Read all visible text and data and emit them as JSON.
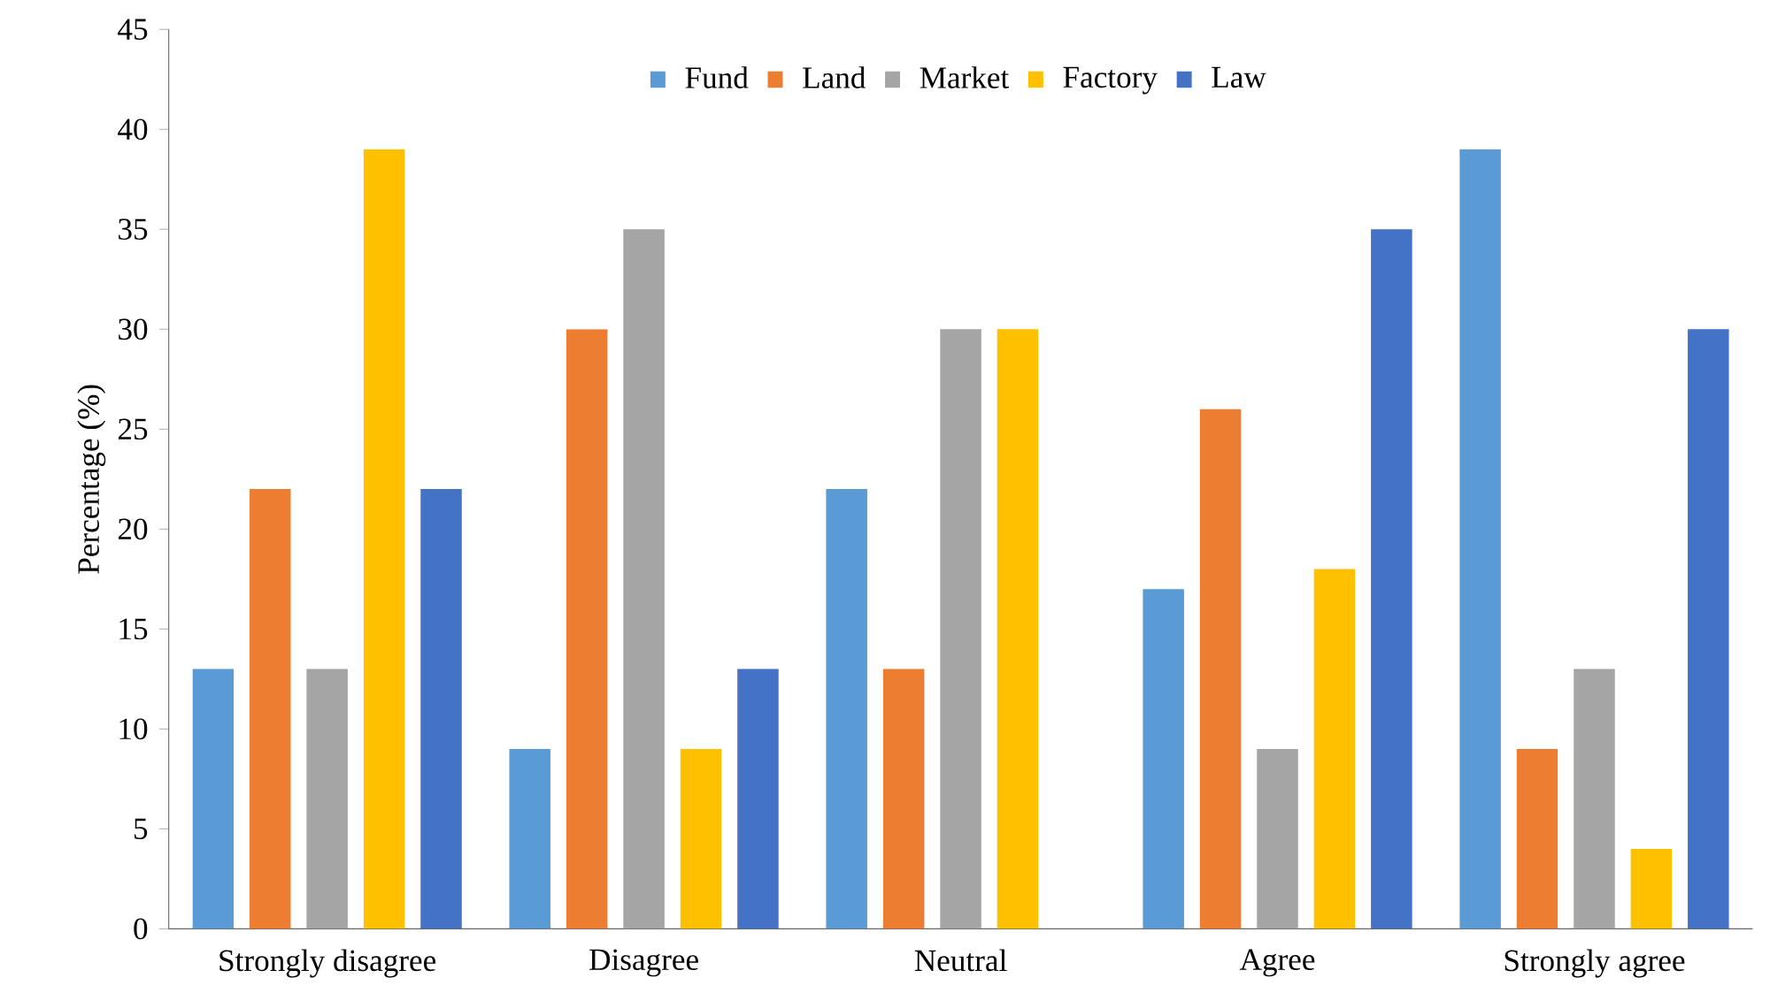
{
  "chart_data": {
    "type": "bar",
    "ylabel": "Percentage (%)",
    "categories": [
      "Strongly disagree",
      "Disagree",
      "Neutral",
      "Agree",
      "Strongly agree"
    ],
    "series": [
      {
        "name": "Fund",
        "color": "#5b9bd5",
        "values": [
          13,
          9,
          22,
          17,
          39
        ]
      },
      {
        "name": "Land",
        "color": "#ed7d31",
        "values": [
          22,
          30,
          13,
          26,
          9
        ]
      },
      {
        "name": "Market",
        "color": "#a5a5a5",
        "values": [
          13,
          35,
          30,
          9,
          13
        ]
      },
      {
        "name": "Factory",
        "color": "#ffc000",
        "values": [
          39,
          9,
          30,
          18,
          4
        ]
      },
      {
        "name": "Law",
        "color": "#4472c4",
        "values": [
          22,
          13,
          0,
          35,
          30
        ]
      }
    ],
    "ylim": [
      0,
      45
    ],
    "yticks": [
      0,
      5,
      10,
      15,
      20,
      25,
      30,
      35,
      40,
      45
    ],
    "legend": "top"
  }
}
